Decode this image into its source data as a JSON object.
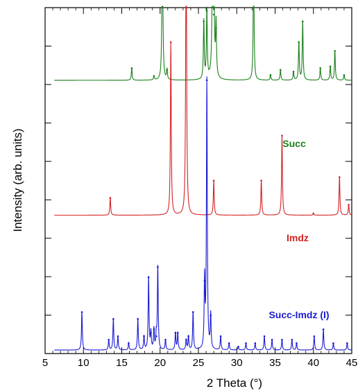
{
  "chart_data": {
    "type": "line",
    "title": "",
    "xlabel": "2 Theta (°)",
    "ylabel": "Intensity (arb. units)",
    "xlim": [
      5,
      45
    ],
    "x_ticks": [
      "5",
      "10",
      "15",
      "20",
      "25",
      "30",
      "35",
      "40",
      "45"
    ],
    "y_ticks_labeled": false,
    "grid": false,
    "legend": "inline-labels",
    "series": [
      {
        "name": "Succ",
        "color": "#1a7f1a",
        "baseline": 0.79,
        "peaks": [
          [
            16.3,
            0.035
          ],
          [
            19.2,
            0.012
          ],
          [
            20.3,
            0.52
          ],
          [
            20.9,
            0.03
          ],
          [
            25.7,
            0.17
          ],
          [
            26.1,
            0.2
          ],
          [
            26.9,
            1.05
          ],
          [
            27.0,
            0.19
          ],
          [
            27.3,
            0.15
          ],
          [
            32.2,
            0.36
          ],
          [
            34.4,
            0.015
          ],
          [
            35.7,
            0.03
          ],
          [
            37.4,
            0.025
          ],
          [
            38.1,
            0.11
          ],
          [
            38.6,
            0.17
          ],
          [
            40.9,
            0.035
          ],
          [
            42.2,
            0.04
          ],
          [
            42.8,
            0.085
          ],
          [
            44.0,
            0.015
          ]
        ]
      },
      {
        "name": "Imdz",
        "color": "#d42020",
        "baseline": 0.4,
        "peaks": [
          [
            13.5,
            0.05
          ],
          [
            21.4,
            0.5
          ],
          [
            23.4,
            0.98
          ],
          [
            27.0,
            0.1
          ],
          [
            33.2,
            0.1
          ],
          [
            35.9,
            0.23
          ],
          [
            40.0,
            0.005
          ],
          [
            43.4,
            0.11
          ],
          [
            44.6,
            0.03
          ]
        ]
      },
      {
        "name": "Succ-Imdz (I)",
        "color": "#1a1ad4",
        "baseline": 0.01,
        "peaks": [
          [
            9.8,
            0.11
          ],
          [
            13.3,
            0.03
          ],
          [
            13.9,
            0.09
          ],
          [
            14.5,
            0.04
          ],
          [
            15.9,
            0.02
          ],
          [
            17.1,
            0.09
          ],
          [
            17.9,
            0.04
          ],
          [
            18.5,
            0.21
          ],
          [
            18.8,
            0.05
          ],
          [
            19.2,
            0.06
          ],
          [
            19.5,
            0.04
          ],
          [
            19.7,
            0.24
          ],
          [
            20.7,
            0.03
          ],
          [
            22.0,
            0.05
          ],
          [
            22.3,
            0.05
          ],
          [
            23.4,
            0.03
          ],
          [
            23.7,
            0.04
          ],
          [
            24.3,
            0.11
          ],
          [
            25.8,
            0.2
          ],
          [
            26.1,
            0.78
          ],
          [
            26.6,
            0.1
          ],
          [
            27.9,
            0.04
          ],
          [
            29.0,
            0.02
          ],
          [
            30.2,
            0.01
          ],
          [
            31.2,
            0.02
          ],
          [
            32.4,
            0.02
          ],
          [
            33.6,
            0.04
          ],
          [
            34.6,
            0.03
          ],
          [
            35.9,
            0.03
          ],
          [
            37.2,
            0.03
          ],
          [
            37.8,
            0.02
          ],
          [
            40.1,
            0.04
          ],
          [
            41.3,
            0.06
          ],
          [
            42.6,
            0.02
          ],
          [
            44.4,
            0.02
          ]
        ]
      }
    ]
  }
}
